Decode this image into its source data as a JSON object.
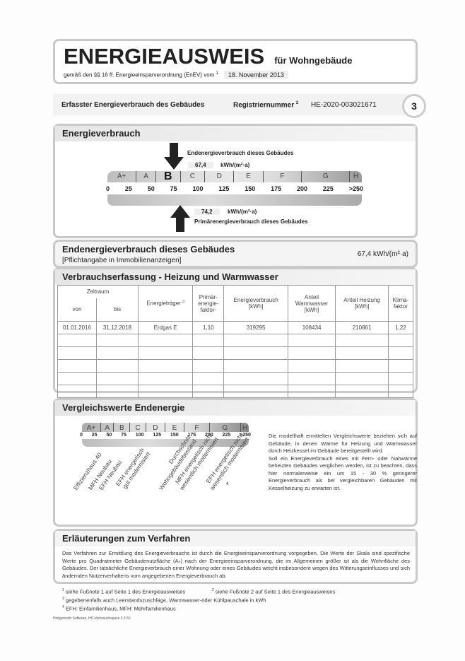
{
  "header": {
    "title": "ENERGIEAUSWEIS",
    "subtitle": "für Wohngebäude",
    "regulation": "gemäß den §§ 16 ff. Energieeinsparverordnung (EnEV) vom",
    "regulation_footnote": "1",
    "date": "18. November 2013"
  },
  "band": {
    "label": "Erfasster Energieverbrauch des Gebäudes",
    "reg_label": "Registriernummer",
    "reg_footnote": "2",
    "reg_number": "HE-2020-003021671",
    "page": "3"
  },
  "verbrauch": {
    "title": "Energieverbrauch",
    "end_label": "Endenergieverbrauch dieses Gebäudes",
    "end_value": "67,4",
    "unit": "kWh/(m²·a)",
    "primary_label": "Primärenergieverbrauch dieses Gebäudes",
    "primary_value": "74,2",
    "current_class": "B",
    "classes": [
      "A+",
      "A",
      "B",
      "C",
      "D",
      "E",
      "F",
      "G",
      "H"
    ],
    "ticks": [
      "0",
      "25",
      "50",
      "75",
      "100",
      "125",
      "150",
      "175",
      "200",
      "225",
      ">250"
    ]
  },
  "endenergie": {
    "title": "Endenergieverbrauch dieses Gebäudes",
    "note": "[Pflichtangabe in Immobilienanzeigen]",
    "value": "67,4 kWh/(m²·a)"
  },
  "erfassung": {
    "title": "Verbrauchserfassung - Heizung und Warmwasser",
    "headers": {
      "zeitraum": "Zeitraum",
      "von": "von",
      "bis": "bis",
      "traeger": "Energieträger",
      "traeger_fn": "3",
      "primaer": "Primär-\nenergie-\nfaktor-",
      "verbrauch": "Energieverbrauch\n[kWh]",
      "warmwasser": "Anteil\nWarmwasser\n[kWh]",
      "heizung": "Anteil Heizung\n[kWh]",
      "klima": "Klima-\nfaktor"
    },
    "rows": [
      [
        "01.01.2016",
        "31.12.2018",
        "Erdgas E",
        "1,10",
        "319295",
        "108434",
        "210861",
        "1,22"
      ]
    ]
  },
  "vergleich": {
    "title": "Vergleichswerte Endenergie",
    "footnote_marker": "4",
    "refs": [
      "Effizienzhaus 40",
      "MFH Neubau",
      "EFH Neubau",
      "EFH energetisch\ngut modernisiert",
      "Durchschnitt\nWohngebäudebestand",
      "MFH energetisch nicht\nwesentlich modernisiert",
      "EFH energetisch nicht\nwesentlich modernisiert"
    ],
    "text": "Die modellhaft ermittelten Vergleichswerte beziehen sich auf Gebäude, in denen Wärme für Heizung und Warmwasser durch Heizkessel im Gebäude bereitgestellt wird.",
    "text2": "Soll ein Energieverbrauch eines mit Fern- oder Nahwärme beheizten Gebäudes verglichen werden, ist zu beachten, dass hier normalerweise ein um 15 - 30 % geringerer Energieverbrauch als bei vergleichbaren Gebäuden mit Kesselheizung zu erwarten ist."
  },
  "erlaeuterung": {
    "title": "Erläuterungen zum Verfahren",
    "text": "Das Verfahren zur Ermittlung des Energieverbrauchs ist durch die Energieeinsparverordnung vorgegeben. Die Werte der Skala sind spezifische Werte pro Quadratmeter Gebäudenutzfläche (Aₙ) nach der Energieeinsparverordnung, die im Allgemeinen größer ist als die Wohnfläche des Gebäudes. Der tatsächliche Energieverbrauch einer Wohnung oder eines Gebäudes weicht insbesondere wegen des Witterungseinflusses und sich ändernden Nutzerverhaltens vom angegebenen Energieverbrauch ab."
  },
  "footnotes": [
    {
      "n": "1",
      "t": "siehe Fußnote 1 auf Seite 1 des Energieausweises"
    },
    {
      "n": "2",
      "t": "siehe Fußnote 2 auf Seite 1 des Energieausweises"
    },
    {
      "n": "3",
      "t": "gegebenenfalls auch Leerstandszuschläge, Warmwasser-oder Kühlpauschale in kWh"
    },
    {
      "n": "4",
      "t": "EFH: Einfamilienhaus, MFH: Mehrfamilienhaus"
    }
  ],
  "software": "Hottgenroth Software, HS Verbrauchspass 3.3.50"
}
